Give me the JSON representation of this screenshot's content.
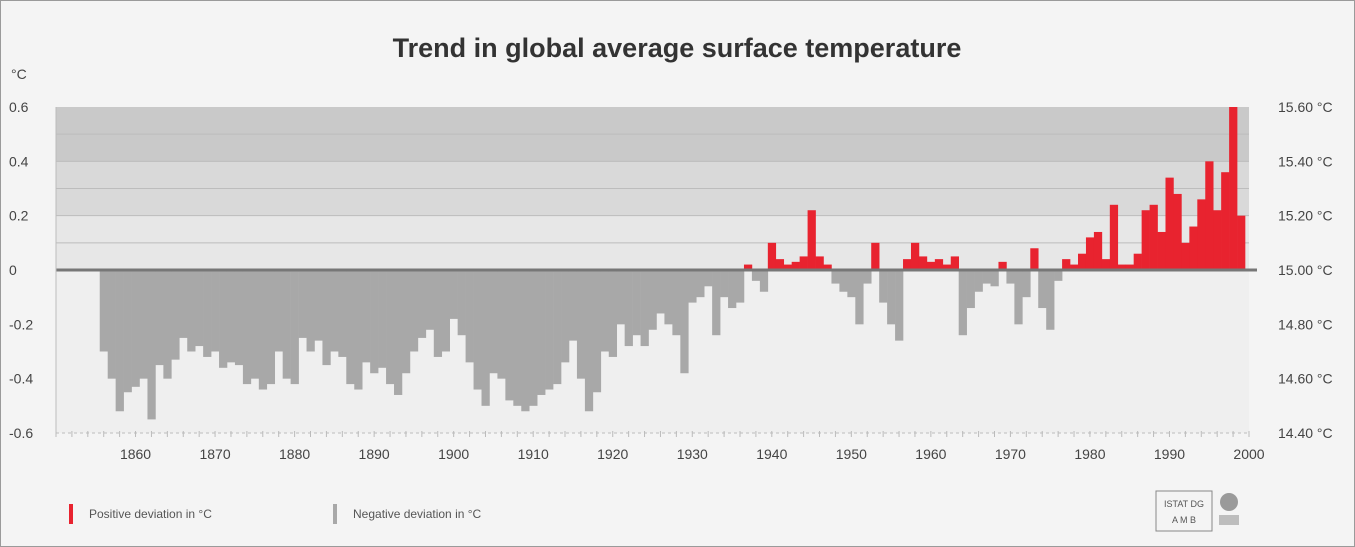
{
  "chart_data": {
    "type": "bar",
    "title": "Trend in global average surface temperature",
    "ylabel": "°C",
    "xlim": [
      1850,
      2000
    ],
    "ylim": [
      -0.6,
      0.6
    ],
    "x_ticks": [
      "1860",
      "1870",
      "1880",
      "1890",
      "1900",
      "1910",
      "1920",
      "1930",
      "1940",
      "1950",
      "1960",
      "1970",
      "1980",
      "1990",
      "2000"
    ],
    "y_ticks_left": [
      "0.6",
      "0.4",
      "0.2",
      "0",
      "-0.2",
      "-0.4",
      "-0.6"
    ],
    "y_ticks_right": [
      "15.60 °C",
      "15.40 °C",
      "15.20 °C",
      "15.00 °C",
      "14.80 °C",
      "14.60 °C",
      "14.40 °C"
    ],
    "legend": [
      {
        "label": "Positive deviation in °C",
        "color": "#e8232f"
      },
      {
        "label": "Negative deviation in °C",
        "color": "#a8a8a8"
      }
    ],
    "colors": {
      "positive": "#e8232f",
      "negative": "#a8a8a8",
      "zero_line": "#777777"
    },
    "years": [
      1856,
      1857,
      1858,
      1859,
      1860,
      1861,
      1862,
      1863,
      1864,
      1865,
      1866,
      1867,
      1868,
      1869,
      1870,
      1871,
      1872,
      1873,
      1874,
      1875,
      1876,
      1877,
      1878,
      1879,
      1880,
      1881,
      1882,
      1883,
      1884,
      1885,
      1886,
      1887,
      1888,
      1889,
      1890,
      1891,
      1892,
      1893,
      1894,
      1895,
      1896,
      1897,
      1898,
      1899,
      1900,
      1901,
      1902,
      1903,
      1904,
      1905,
      1906,
      1907,
      1908,
      1909,
      1910,
      1911,
      1912,
      1913,
      1914,
      1915,
      1916,
      1917,
      1918,
      1919,
      1920,
      1921,
      1922,
      1923,
      1924,
      1925,
      1926,
      1927,
      1928,
      1929,
      1930,
      1931,
      1932,
      1933,
      1934,
      1935,
      1936,
      1937,
      1938,
      1939,
      1940,
      1941,
      1942,
      1943,
      1944,
      1945,
      1946,
      1947,
      1948,
      1949,
      1950,
      1951,
      1952,
      1953,
      1954,
      1955,
      1956,
      1957,
      1958,
      1959,
      1960,
      1961,
      1962,
      1963,
      1964,
      1965,
      1966,
      1967,
      1968,
      1969,
      1970,
      1971,
      1972,
      1973,
      1974,
      1975,
      1976,
      1977,
      1978,
      1979,
      1980,
      1981,
      1982,
      1983,
      1984,
      1985,
      1986,
      1987,
      1988,
      1989,
      1990,
      1991,
      1992,
      1993,
      1994,
      1995,
      1996,
      1997,
      1998,
      1999
    ],
    "values": [
      -0.3,
      -0.4,
      -0.52,
      -0.45,
      -0.43,
      -0.4,
      -0.55,
      -0.35,
      -0.4,
      -0.33,
      -0.25,
      -0.3,
      -0.28,
      -0.32,
      -0.3,
      -0.36,
      -0.34,
      -0.35,
      -0.42,
      -0.4,
      -0.44,
      -0.42,
      -0.3,
      -0.4,
      -0.42,
      -0.25,
      -0.3,
      -0.26,
      -0.35,
      -0.3,
      -0.32,
      -0.42,
      -0.44,
      -0.34,
      -0.38,
      -0.36,
      -0.42,
      -0.46,
      -0.38,
      -0.3,
      -0.25,
      -0.22,
      -0.32,
      -0.3,
      -0.18,
      -0.24,
      -0.34,
      -0.44,
      -0.5,
      -0.38,
      -0.4,
      -0.48,
      -0.5,
      -0.52,
      -0.5,
      -0.46,
      -0.44,
      -0.42,
      -0.34,
      -0.26,
      -0.4,
      -0.52,
      -0.45,
      -0.3,
      -0.32,
      -0.2,
      -0.28,
      -0.24,
      -0.28,
      -0.22,
      -0.16,
      -0.2,
      -0.24,
      -0.38,
      -0.12,
      -0.1,
      -0.06,
      -0.24,
      -0.1,
      -0.14,
      -0.12,
      0.02,
      -0.04,
      -0.08,
      0.1,
      0.04,
      0.02,
      0.03,
      0.05,
      0.22,
      0.05,
      0.02,
      -0.05,
      -0.08,
      -0.1,
      -0.2,
      -0.05,
      0.1,
      -0.12,
      -0.2,
      -0.26,
      0.04,
      0.1,
      0.05,
      0.03,
      0.04,
      0.02,
      0.05,
      -0.24,
      -0.14,
      -0.08,
      -0.05,
      -0.06,
      0.03,
      -0.05,
      -0.2,
      -0.1,
      0.08,
      -0.14,
      -0.22,
      -0.04,
      0.04,
      0.02,
      0.06,
      0.12,
      0.14,
      0.04,
      0.24,
      0.02,
      0.02,
      0.06,
      0.22,
      0.24,
      0.14,
      0.34,
      0.28,
      0.1,
      0.16,
      0.26,
      0.4,
      0.22,
      0.36,
      0.6,
      0.2
    ]
  },
  "footer": {
    "logo_line1": "ISTAT DG",
    "logo_line2": "A M B"
  }
}
